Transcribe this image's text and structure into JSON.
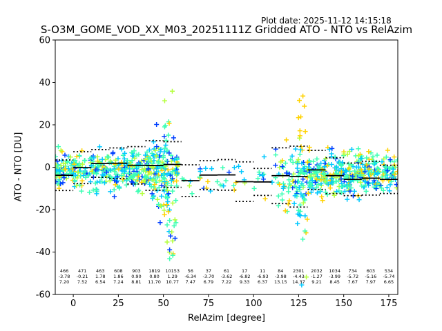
{
  "header": {
    "plot_date_label": "Plot date: 2025-11-12 14:15:18"
  },
  "chart_data": {
    "type": "scatter",
    "title": "S-O3M_GOME_VOD_XX_M03_20251111Z Gridded ATO - NTO vs RelAzim",
    "xlabel": "RelAzim [degree]",
    "ylabel": "ATO - NTO [DU]",
    "xlim": [
      -10,
      180
    ],
    "ylim": [
      -60,
      60
    ],
    "xticks": [
      0,
      25,
      50,
      75,
      100,
      125,
      150,
      175
    ],
    "yticks": [
      -60,
      -40,
      -20,
      0,
      20,
      40,
      60
    ],
    "grid": false,
    "colors": {
      "cyan": "#00c8ff",
      "teal": "#3cffb4",
      "yellow": "#ffd200",
      "blue": "#0040ff",
      "lime": "#b4ff3c",
      "mean": "#000000"
    },
    "bins": [
      {
        "center": -5,
        "count": "466",
        "mean": "-3.78",
        "std": "7.20"
      },
      {
        "center": 5,
        "count": "471",
        "mean": "-0.21",
        "std": "7.52"
      },
      {
        "center": 15,
        "count": "463",
        "mean": "1.78",
        "std": "6.54"
      },
      {
        "center": 25,
        "count": "608",
        "mean": "1.86",
        "std": "7.24"
      },
      {
        "center": 35,
        "count": "903",
        "mean": "0.90",
        "std": "8.81"
      },
      {
        "center": 45,
        "count": "1819",
        "mean": "0.80",
        "std": "11.70"
      },
      {
        "center": 55,
        "count": "10153",
        "mean": "1.29",
        "std": "10.77"
      },
      {
        "center": 65,
        "count": "56",
        "mean": "-6.34",
        "std": "7.47"
      },
      {
        "center": 75,
        "count": "37",
        "mean": "-3.70",
        "std": "6.79"
      },
      {
        "center": 85,
        "count": "61",
        "mean": "-3.62",
        "std": "7.22"
      },
      {
        "center": 95,
        "count": "17",
        "mean": "-6.82",
        "std": "9.33"
      },
      {
        "center": 105,
        "count": "11",
        "mean": "-6.93",
        "std": "6.37"
      },
      {
        "center": 115,
        "count": "84",
        "mean": "-3.98",
        "std": "13.15"
      },
      {
        "center": 125,
        "count": "2301",
        "mean": "-4.43",
        "std": "14.37"
      },
      {
        "center": 135,
        "count": "2032",
        "mean": "-1.27",
        "std": "9.21"
      },
      {
        "center": 145,
        "count": "1034",
        "mean": "-3.99",
        "std": "8.45"
      },
      {
        "center": 155,
        "count": "734",
        "mean": "-5.72",
        "std": "7.67"
      },
      {
        "center": 165,
        "count": "603",
        "mean": "-5.16",
        "std": "7.97"
      },
      {
        "center": 175,
        "count": "534",
        "mean": "-5.74",
        "std": "6.65"
      }
    ]
  }
}
